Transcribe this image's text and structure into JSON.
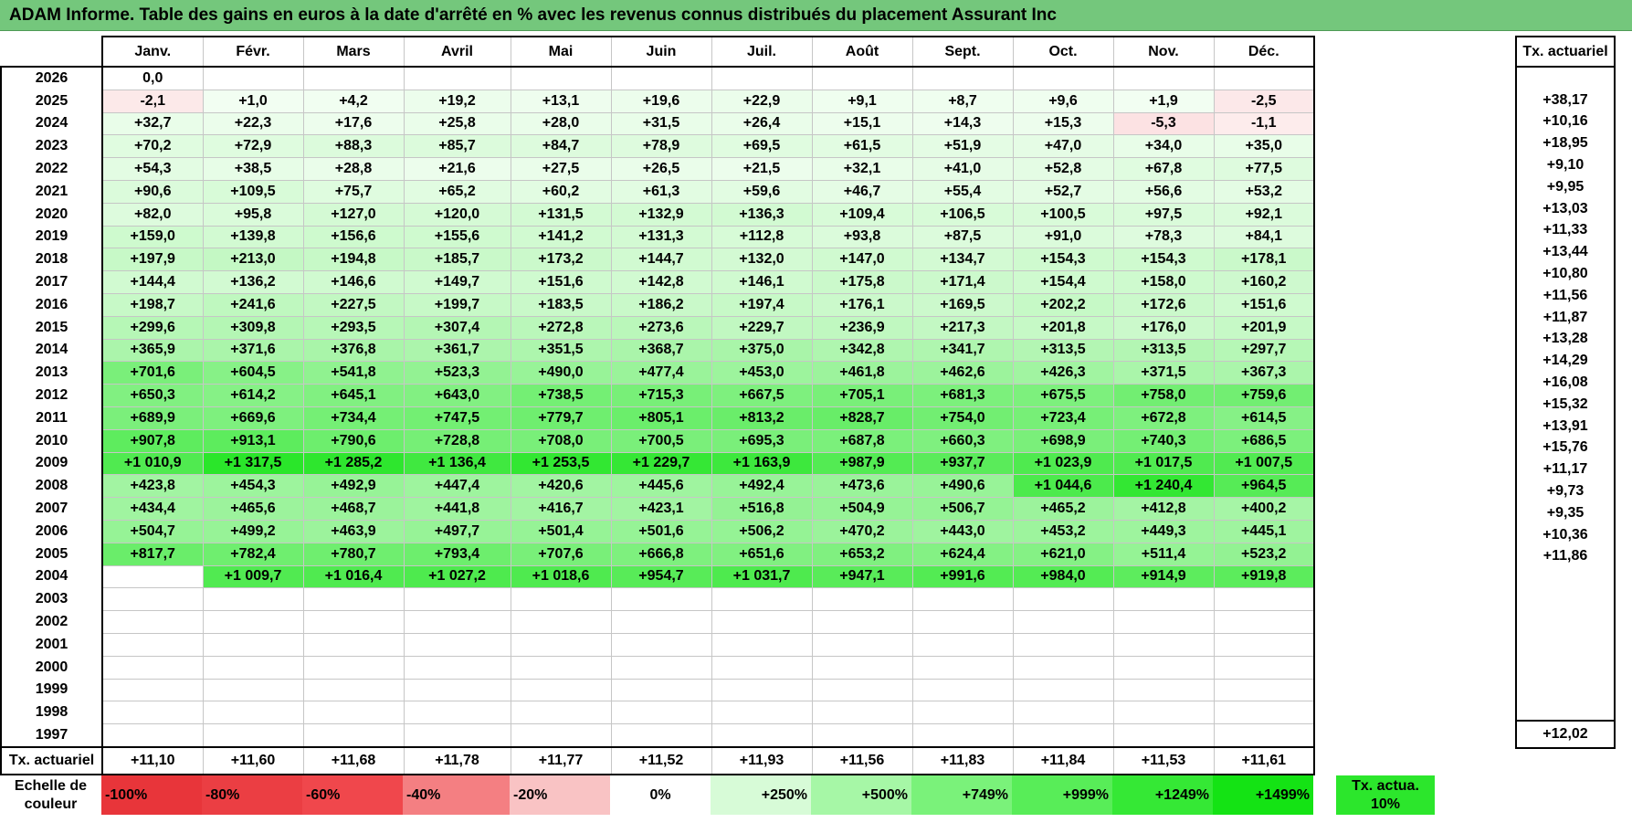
{
  "title": "ADAM Informe. Table des gains en euros à la date d'arrêté en % avec les revenus connus distribués du placement Assurant Inc",
  "months": [
    "Janv.",
    "Févr.",
    "Mars",
    "Avril",
    "Mai",
    "Juin",
    "Juil.",
    "Août",
    "Sept.",
    "Oct.",
    "Nov.",
    "Déc."
  ],
  "side_header": "Tx. actuariel",
  "rows": [
    {
      "year": "2026",
      "cells": [
        "0,0",
        "",
        "",
        "",
        "",
        "",
        "",
        "",
        "",
        "",
        "",
        ""
      ],
      "rate": ""
    },
    {
      "year": "2025",
      "cells": [
        "-2,1",
        "+1,0",
        "+4,2",
        "+19,2",
        "+13,1",
        "+19,6",
        "+22,9",
        "+9,1",
        "+8,7",
        "+9,6",
        "+1,9",
        "-2,5"
      ],
      "rate": "+38,17"
    },
    {
      "year": "2024",
      "cells": [
        "+32,7",
        "+22,3",
        "+17,6",
        "+25,8",
        "+28,0",
        "+31,5",
        "+26,4",
        "+15,1",
        "+14,3",
        "+15,3",
        "-5,3",
        "-1,1"
      ],
      "rate": "+10,16"
    },
    {
      "year": "2023",
      "cells": [
        "+70,2",
        "+72,9",
        "+88,3",
        "+85,7",
        "+84,7",
        "+78,9",
        "+69,5",
        "+61,5",
        "+51,9",
        "+47,0",
        "+34,0",
        "+35,0"
      ],
      "rate": "+18,95"
    },
    {
      "year": "2022",
      "cells": [
        "+54,3",
        "+38,5",
        "+28,8",
        "+21,6",
        "+27,5",
        "+26,5",
        "+21,5",
        "+32,1",
        "+41,0",
        "+52,8",
        "+67,8",
        "+77,5"
      ],
      "rate": "+9,10"
    },
    {
      "year": "2021",
      "cells": [
        "+90,6",
        "+109,5",
        "+75,7",
        "+65,2",
        "+60,2",
        "+61,3",
        "+59,6",
        "+46,7",
        "+55,4",
        "+52,7",
        "+56,6",
        "+53,2"
      ],
      "rate": "+9,95"
    },
    {
      "year": "2020",
      "cells": [
        "+82,0",
        "+95,8",
        "+127,0",
        "+120,0",
        "+131,5",
        "+132,9",
        "+136,3",
        "+109,4",
        "+106,5",
        "+100,5",
        "+97,5",
        "+92,1"
      ],
      "rate": "+13,03"
    },
    {
      "year": "2019",
      "cells": [
        "+159,0",
        "+139,8",
        "+156,6",
        "+155,6",
        "+141,2",
        "+131,3",
        "+112,8",
        "+93,8",
        "+87,5",
        "+91,0",
        "+78,3",
        "+84,1"
      ],
      "rate": "+11,33"
    },
    {
      "year": "2018",
      "cells": [
        "+197,9",
        "+213,0",
        "+194,8",
        "+185,7",
        "+173,2",
        "+144,7",
        "+132,0",
        "+147,0",
        "+134,7",
        "+154,3",
        "+154,3",
        "+178,1"
      ],
      "rate": "+13,44"
    },
    {
      "year": "2017",
      "cells": [
        "+144,4",
        "+136,2",
        "+146,6",
        "+149,7",
        "+151,6",
        "+142,8",
        "+146,1",
        "+175,8",
        "+171,4",
        "+154,4",
        "+158,0",
        "+160,2"
      ],
      "rate": "+10,80"
    },
    {
      "year": "2016",
      "cells": [
        "+198,7",
        "+241,6",
        "+227,5",
        "+199,7",
        "+183,5",
        "+186,2",
        "+197,4",
        "+176,1",
        "+169,5",
        "+202,2",
        "+172,6",
        "+151,6"
      ],
      "rate": "+11,56"
    },
    {
      "year": "2015",
      "cells": [
        "+299,6",
        "+309,8",
        "+293,5",
        "+307,4",
        "+272,8",
        "+273,6",
        "+229,7",
        "+236,9",
        "+217,3",
        "+201,8",
        "+176,0",
        "+201,9"
      ],
      "rate": "+11,87"
    },
    {
      "year": "2014",
      "cells": [
        "+365,9",
        "+371,6",
        "+376,8",
        "+361,7",
        "+351,5",
        "+368,7",
        "+375,0",
        "+342,8",
        "+341,7",
        "+313,5",
        "+313,5",
        "+297,7"
      ],
      "rate": "+13,28"
    },
    {
      "year": "2013",
      "cells": [
        "+701,6",
        "+604,5",
        "+541,8",
        "+523,3",
        "+490,0",
        "+477,4",
        "+453,0",
        "+461,8",
        "+462,6",
        "+426,3",
        "+371,5",
        "+367,3"
      ],
      "rate": "+14,29"
    },
    {
      "year": "2012",
      "cells": [
        "+650,3",
        "+614,2",
        "+645,1",
        "+643,0",
        "+738,5",
        "+715,3",
        "+667,5",
        "+705,1",
        "+681,3",
        "+675,5",
        "+758,0",
        "+759,6"
      ],
      "rate": "+16,08"
    },
    {
      "year": "2011",
      "cells": [
        "+689,9",
        "+669,6",
        "+734,4",
        "+747,5",
        "+779,7",
        "+805,1",
        "+813,2",
        "+828,7",
        "+754,0",
        "+723,4",
        "+672,8",
        "+614,5"
      ],
      "rate": "+15,32"
    },
    {
      "year": "2010",
      "cells": [
        "+907,8",
        "+913,1",
        "+790,6",
        "+728,8",
        "+708,0",
        "+700,5",
        "+695,3",
        "+687,8",
        "+660,3",
        "+698,9",
        "+740,3",
        "+686,5"
      ],
      "rate": "+13,91"
    },
    {
      "year": "2009",
      "cells": [
        "+1 010,9",
        "+1 317,5",
        "+1 285,2",
        "+1 136,4",
        "+1 253,5",
        "+1 229,7",
        "+1 163,9",
        "+987,9",
        "+937,7",
        "+1 023,9",
        "+1 017,5",
        "+1 007,5"
      ],
      "rate": "+15,76"
    },
    {
      "year": "2008",
      "cells": [
        "+423,8",
        "+454,3",
        "+492,9",
        "+447,4",
        "+420,6",
        "+445,6",
        "+492,4",
        "+473,6",
        "+490,6",
        "+1 044,6",
        "+1 240,4",
        "+964,5"
      ],
      "rate": "+11,17"
    },
    {
      "year": "2007",
      "cells": [
        "+434,4",
        "+465,6",
        "+468,7",
        "+441,8",
        "+416,7",
        "+423,1",
        "+516,8",
        "+504,9",
        "+506,7",
        "+465,2",
        "+412,8",
        "+400,2"
      ],
      "rate": "+9,73"
    },
    {
      "year": "2006",
      "cells": [
        "+504,7",
        "+499,2",
        "+463,9",
        "+497,7",
        "+501,4",
        "+501,6",
        "+506,2",
        "+470,2",
        "+443,0",
        "+453,2",
        "+449,3",
        "+445,1"
      ],
      "rate": "+9,35"
    },
    {
      "year": "2005",
      "cells": [
        "+817,7",
        "+782,4",
        "+780,7",
        "+793,4",
        "+707,6",
        "+666,8",
        "+651,6",
        "+653,2",
        "+624,4",
        "+621,0",
        "+511,4",
        "+523,2"
      ],
      "rate": "+10,36"
    },
    {
      "year": "2004",
      "cells": [
        "",
        "+1 009,7",
        "+1 016,4",
        "+1 027,2",
        "+1 018,6",
        "+954,7",
        "+1 031,7",
        "+947,1",
        "+991,6",
        "+984,0",
        "+914,9",
        "+919,8"
      ],
      "rate": "+11,86"
    },
    {
      "year": "2003",
      "cells": [
        "",
        "",
        "",
        "",
        "",
        "",
        "",
        "",
        "",
        "",
        "",
        ""
      ],
      "rate": ""
    },
    {
      "year": "2002",
      "cells": [
        "",
        "",
        "",
        "",
        "",
        "",
        "",
        "",
        "",
        "",
        "",
        ""
      ],
      "rate": ""
    },
    {
      "year": "2001",
      "cells": [
        "",
        "",
        "",
        "",
        "",
        "",
        "",
        "",
        "",
        "",
        "",
        ""
      ],
      "rate": ""
    },
    {
      "year": "2000",
      "cells": [
        "",
        "",
        "",
        "",
        "",
        "",
        "",
        "",
        "",
        "",
        "",
        ""
      ],
      "rate": ""
    },
    {
      "year": "1999",
      "cells": [
        "",
        "",
        "",
        "",
        "",
        "",
        "",
        "",
        "",
        "",
        "",
        ""
      ],
      "rate": ""
    },
    {
      "year": "1998",
      "cells": [
        "",
        "",
        "",
        "",
        "",
        "",
        "",
        "",
        "",
        "",
        "",
        ""
      ],
      "rate": ""
    },
    {
      "year": "1997",
      "cells": [
        "",
        "",
        "",
        "",
        "",
        "",
        "",
        "",
        "",
        "",
        "",
        ""
      ],
      "rate": ""
    }
  ],
  "total_row": {
    "label": "Tx. actuariel",
    "cells": [
      "+11,10",
      "+11,60",
      "+11,68",
      "+11,78",
      "+11,77",
      "+11,52",
      "+11,93",
      "+11,56",
      "+11,83",
      "+11,84",
      "+11,53",
      "+11,61"
    ],
    "overall": "+12,02"
  },
  "legend": {
    "label": "Echelle de couleur",
    "items": [
      {
        "text": "-100%",
        "color": "#e8353a"
      },
      {
        "text": "-80%",
        "color": "#eb3e43"
      },
      {
        "text": "-60%",
        "color": "#f0474c"
      },
      {
        "text": "-40%",
        "color": "#f47f82"
      },
      {
        "text": "-20%",
        "color": "#f9c3c4"
      },
      {
        "text": "0%",
        "color": "#ffffff"
      },
      {
        "text": "+250%",
        "color": "#d7fbd7"
      },
      {
        "text": "+500%",
        "color": "#a6f7a6"
      },
      {
        "text": "+749%",
        "color": "#7af27a"
      },
      {
        "text": "+999%",
        "color": "#58ed58"
      },
      {
        "text": "+1249%",
        "color": "#35e835"
      },
      {
        "text": "+1499%",
        "color": "#14e314"
      }
    ],
    "actuarial": {
      "text": "Tx. actua. 10%",
      "color": "#2ce62c"
    }
  }
}
